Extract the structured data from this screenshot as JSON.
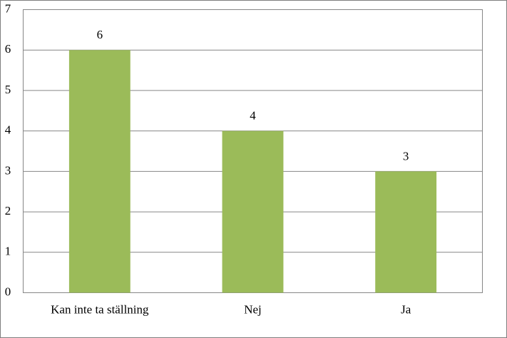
{
  "chart_data": {
    "type": "bar",
    "categories": [
      "Kan inte ta ställning",
      "Nej",
      "Ja"
    ],
    "values": [
      6,
      4,
      3
    ],
    "color": "#9bbb59",
    "ylim": [
      0,
      7
    ],
    "yticks": [
      0,
      1,
      2,
      3,
      4,
      5,
      6,
      7
    ],
    "grid": true,
    "data_labels": true
  }
}
